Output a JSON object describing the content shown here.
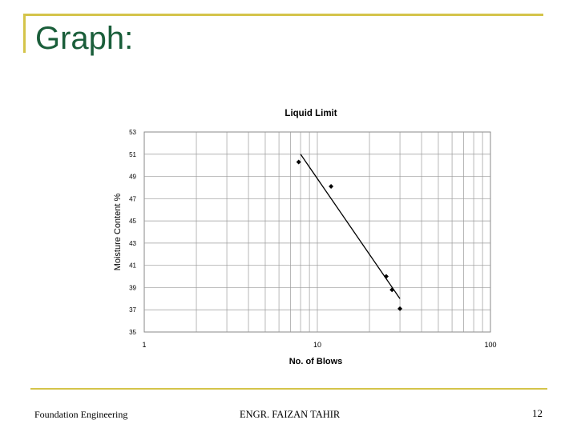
{
  "slide": {
    "title": "Graph:",
    "accent_color": "#d4c44a",
    "title_color": "#1a5e3a"
  },
  "chart_data": {
    "type": "scatter",
    "title": "Liquid Limit",
    "xlabel": "No. of Blows",
    "ylabel": "Moisture Content %",
    "x_scale": "log",
    "xlim": [
      1,
      100
    ],
    "ylim": [
      35,
      53
    ],
    "x_ticks": [
      "1",
      "10",
      "100"
    ],
    "y_ticks": [
      "53",
      "51",
      "49",
      "47",
      "45",
      "43",
      "41",
      "39",
      "37",
      "35"
    ],
    "grid": true,
    "legend": "none",
    "series": [
      {
        "points": [
          {
            "x": 7.8,
            "y": 50.3
          },
          {
            "x": 12,
            "y": 48.1
          },
          {
            "x": 25,
            "y": 40.0
          },
          {
            "x": 27,
            "y": 38.8
          },
          {
            "x": 30,
            "y": 37.1
          }
        ]
      }
    ],
    "trendline": [
      {
        "x": 8,
        "y": 51.0
      },
      {
        "x": 30,
        "y": 38.0
      }
    ]
  },
  "footer": {
    "left": "Foundation Engineering",
    "center": "ENGR. FAIZAN TAHIR",
    "page_number": "12"
  }
}
